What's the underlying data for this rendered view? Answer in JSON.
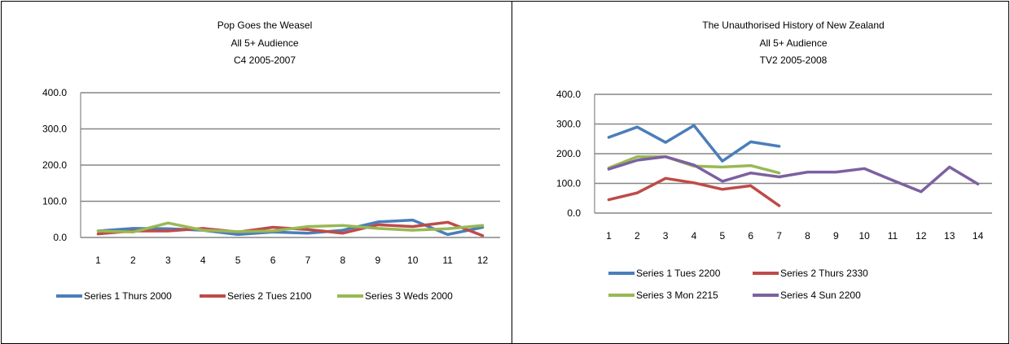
{
  "chart_data": [
    {
      "type": "line",
      "title": [
        "Pop Goes the Weasel",
        "All 5+ Audience",
        "C4 2005-2007"
      ],
      "xlabel": "",
      "ylabel": "",
      "categories": [
        "1",
        "2",
        "3",
        "4",
        "5",
        "6",
        "7",
        "8",
        "9",
        "10",
        "11",
        "12"
      ],
      "y_ticks": [
        "0.0",
        "100.0",
        "200.0",
        "300.0",
        "400.0"
      ],
      "ylim": [
        0,
        400
      ],
      "grid": true,
      "legend_position": "bottom",
      "series": [
        {
          "name": "Series 1 Thurs 2000",
          "color": "#4a7ebb",
          "values": [
            18,
            25,
            24,
            20,
            8,
            15,
            12,
            20,
            43,
            48,
            8,
            28
          ]
        },
        {
          "name": "Series 2 Tues 2100",
          "color": "#be4b48",
          "values": [
            10,
            18,
            18,
            25,
            15,
            28,
            22,
            12,
            35,
            30,
            42,
            5
          ]
        },
        {
          "name": "Series 3 Weds 2000",
          "color": "#98b954",
          "values": [
            18,
            15,
            40,
            20,
            16,
            18,
            30,
            33,
            25,
            20,
            24,
            33
          ]
        }
      ]
    },
    {
      "type": "line",
      "title": [
        "The Unauthorised History of New Zealand",
        "All 5+ Audience",
        "TV2 2005-2008"
      ],
      "xlabel": "",
      "ylabel": "",
      "categories": [
        "1",
        "2",
        "3",
        "4",
        "5",
        "6",
        "7",
        "8",
        "9",
        "10",
        "11",
        "12",
        "13",
        "14"
      ],
      "y_ticks": [
        "0.0",
        "100.0",
        "200.0",
        "300.0",
        "400.0"
      ],
      "ylim": [
        0,
        400
      ],
      "grid": true,
      "legend_position": "bottom",
      "series": [
        {
          "name": "Series 1 Tues 2200",
          "color": "#4a7ebb",
          "values": [
            255,
            290,
            238,
            295,
            175,
            240,
            225,
            null,
            null,
            null,
            null,
            null,
            null,
            null
          ]
        },
        {
          "name": "Series 2 Thurs 2330",
          "color": "#be4b48",
          "values": [
            45,
            68,
            117,
            102,
            80,
            92,
            25,
            null,
            null,
            null,
            null,
            null,
            null,
            null
          ]
        },
        {
          "name": "Series 3 Mon 2215",
          "color": "#98b954",
          "values": [
            152,
            190,
            190,
            158,
            155,
            160,
            135,
            null,
            null,
            null,
            null,
            null,
            null,
            null
          ]
        },
        {
          "name": "Series 4 Sun 2200",
          "color": "#7d60a0",
          "values": [
            148,
            178,
            190,
            162,
            107,
            135,
            122,
            138,
            138,
            150,
            110,
            72,
            155,
            98
          ]
        }
      ]
    }
  ]
}
